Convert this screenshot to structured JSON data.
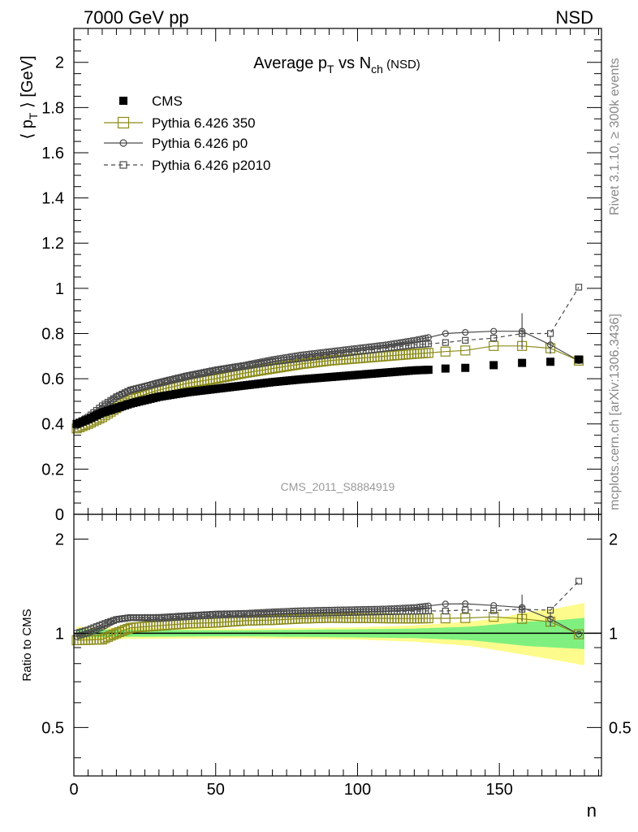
{
  "header": {
    "left": "7000 GeV pp",
    "right": "NSD"
  },
  "side": {
    "rivet": "Rivet 3.1.10, ≥ 300k events",
    "mcplots": "mcplots.cern.ch [arXiv:1306.3436]"
  },
  "chart_data": {
    "type": "scatter",
    "title": "Average p_T vs N_ch (NSD)",
    "analysis_label": "CMS_2011_S8884919",
    "xlabel": "n",
    "ylabel_top": "⟨ p_T ⟩ [GeV]",
    "ylabel_bottom": "Ratio to CMS",
    "xlim": [
      0,
      186
    ],
    "ylim_top": [
      0,
      2.15
    ],
    "ylim_bottom_log": [
      0.35,
      2.4
    ],
    "x_ticks": [
      "0",
      "50",
      "100",
      "150"
    ],
    "y_ticks_top": [
      "0",
      "0.2",
      "0.4",
      "0.6",
      "0.8",
      "1",
      "1.2",
      "1.4",
      "1.6",
      "1.8",
      "2"
    ],
    "y_ticks_bottom": [
      "0.5",
      "1",
      "2"
    ],
    "legend_position": "top-left",
    "legend": [
      {
        "key": "cms",
        "label": "CMS"
      },
      {
        "key": "p350",
        "label": "Pythia 6.426 350"
      },
      {
        "key": "p0",
        "label": "Pythia 6.426 p0"
      },
      {
        "key": "p2010",
        "label": "Pythia 6.426 p2010"
      }
    ],
    "colors": {
      "cms": "#000000",
      "p350": "#8b8b1a",
      "p0": "#4a4a4a",
      "p2010": "#4a4a4a",
      "band_inner": "#7ff07f",
      "band_outer": "#fdfb8c"
    },
    "cms_anchors": [
      [
        1,
        0.4
      ],
      [
        5,
        0.42
      ],
      [
        10,
        0.45
      ],
      [
        15,
        0.47
      ],
      [
        20,
        0.49
      ],
      [
        30,
        0.52
      ],
      [
        40,
        0.54
      ],
      [
        50,
        0.555
      ],
      [
        60,
        0.57
      ],
      [
        70,
        0.585
      ],
      [
        80,
        0.597
      ],
      [
        90,
        0.607
      ],
      [
        100,
        0.617
      ],
      [
        110,
        0.627
      ],
      [
        120,
        0.637
      ],
      [
        126,
        0.64
      ],
      [
        131,
        0.645
      ],
      [
        138,
        0.648
      ],
      [
        148,
        0.66
      ],
      [
        158,
        0.67
      ],
      [
        168,
        0.675
      ],
      [
        178,
        0.685
      ]
    ],
    "p350_anchors": [
      [
        1,
        0.38
      ],
      [
        5,
        0.4
      ],
      [
        10,
        0.43
      ],
      [
        15,
        0.47
      ],
      [
        20,
        0.51
      ],
      [
        30,
        0.55
      ],
      [
        40,
        0.58
      ],
      [
        50,
        0.6
      ],
      [
        60,
        0.625
      ],
      [
        70,
        0.645
      ],
      [
        80,
        0.665
      ],
      [
        90,
        0.68
      ],
      [
        100,
        0.69
      ],
      [
        110,
        0.7
      ],
      [
        120,
        0.71
      ],
      [
        126,
        0.715
      ],
      [
        131,
        0.72
      ],
      [
        138,
        0.725
      ],
      [
        148,
        0.745
      ],
      [
        158,
        0.745
      ],
      [
        168,
        0.735
      ],
      [
        178,
        0.68
      ]
    ],
    "p0_anchors": [
      [
        1,
        0.39
      ],
      [
        5,
        0.42
      ],
      [
        10,
        0.47
      ],
      [
        15,
        0.52
      ],
      [
        20,
        0.55
      ],
      [
        30,
        0.585
      ],
      [
        40,
        0.615
      ],
      [
        50,
        0.64
      ],
      [
        60,
        0.66
      ],
      [
        70,
        0.685
      ],
      [
        80,
        0.705
      ],
      [
        90,
        0.72
      ],
      [
        100,
        0.735
      ],
      [
        110,
        0.75
      ],
      [
        120,
        0.77
      ],
      [
        126,
        0.785
      ],
      [
        131,
        0.8
      ],
      [
        138,
        0.805
      ],
      [
        148,
        0.81
      ],
      [
        158,
        0.81
      ],
      [
        168,
        0.75
      ],
      [
        178,
        0.68
      ]
    ],
    "p2010_anchors": [
      [
        1,
        0.4
      ],
      [
        5,
        0.43
      ],
      [
        10,
        0.48
      ],
      [
        15,
        0.52
      ],
      [
        20,
        0.55
      ],
      [
        30,
        0.58
      ],
      [
        40,
        0.61
      ],
      [
        50,
        0.635
      ],
      [
        60,
        0.655
      ],
      [
        70,
        0.675
      ],
      [
        80,
        0.69
      ],
      [
        90,
        0.705
      ],
      [
        100,
        0.72
      ],
      [
        110,
        0.735
      ],
      [
        120,
        0.75
      ],
      [
        126,
        0.755
      ],
      [
        131,
        0.76
      ],
      [
        138,
        0.77
      ],
      [
        148,
        0.78
      ],
      [
        158,
        0.8
      ],
      [
        168,
        0.8
      ],
      [
        178,
        1.005
      ]
    ],
    "band_inner_anchors": [
      [
        1,
        0.97,
        1.03
      ],
      [
        20,
        0.975,
        1.025
      ],
      [
        60,
        0.978,
        1.022
      ],
      [
        100,
        0.97,
        1.03
      ],
      [
        120,
        0.965,
        1.035
      ],
      [
        140,
        0.95,
        1.05
      ],
      [
        150,
        0.93,
        1.07
      ],
      [
        160,
        0.91,
        1.09
      ],
      [
        170,
        0.9,
        1.1
      ],
      [
        180,
        0.89,
        1.12
      ]
    ],
    "band_outer_anchors": [
      [
        1,
        0.95,
        1.05
      ],
      [
        20,
        0.96,
        1.04
      ],
      [
        60,
        0.965,
        1.035
      ],
      [
        100,
        0.955,
        1.045
      ],
      [
        120,
        0.94,
        1.06
      ],
      [
        140,
        0.91,
        1.09
      ],
      [
        150,
        0.88,
        1.12
      ],
      [
        160,
        0.85,
        1.17
      ],
      [
        170,
        0.82,
        1.2
      ],
      [
        180,
        0.79,
        1.25
      ]
    ]
  }
}
